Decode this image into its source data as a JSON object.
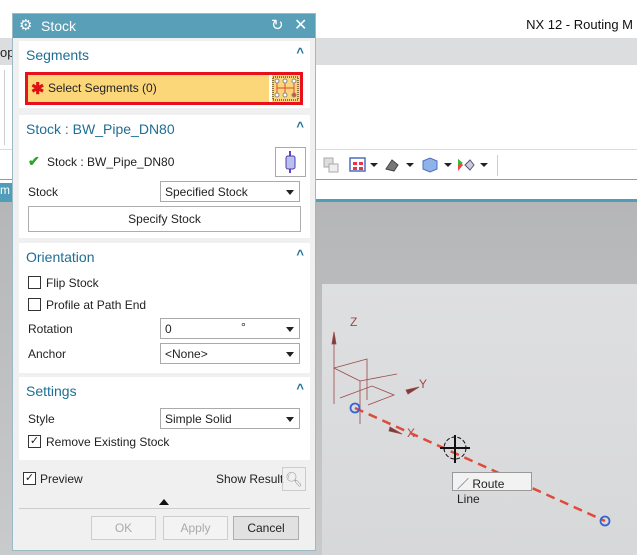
{
  "app": {
    "title": "NX 12 - Routing M",
    "left_clip_text": "op",
    "left_clip_tab": "m"
  },
  "dialog": {
    "title": "Stock",
    "segments": {
      "header": "Segments",
      "select_label": "Select Segments (0)"
    },
    "stock": {
      "header": "Stock : BW_Pipe_DN80",
      "status": "Stock : BW_Pipe_DN80",
      "stock_label": "Stock",
      "stock_value": "Specified Stock",
      "specify_button": "Specify Stock"
    },
    "orientation": {
      "header": "Orientation",
      "flip_stock": {
        "label": "Flip Stock",
        "checked": false
      },
      "profile_at_path_end": {
        "label": "Profile at Path End",
        "checked": false
      },
      "rotation_label": "Rotation",
      "rotation_value": "0",
      "rotation_unit": "°",
      "anchor_label": "Anchor",
      "anchor_value": "<None>"
    },
    "settings": {
      "header": "Settings",
      "style_label": "Style",
      "style_value": "Simple Solid",
      "remove_existing": {
        "label": "Remove Existing Stock",
        "checked": true
      }
    },
    "preview": {
      "label": "Preview",
      "checked": true
    },
    "show_result": "Show Result",
    "buttons": {
      "ok": "OK",
      "apply": "Apply",
      "cancel": "Cancel"
    }
  },
  "viewport": {
    "axes": {
      "z": "Z",
      "y": "Y",
      "x": "X"
    },
    "tooltip": "Route Line",
    "route_color": "#e04a3a"
  }
}
